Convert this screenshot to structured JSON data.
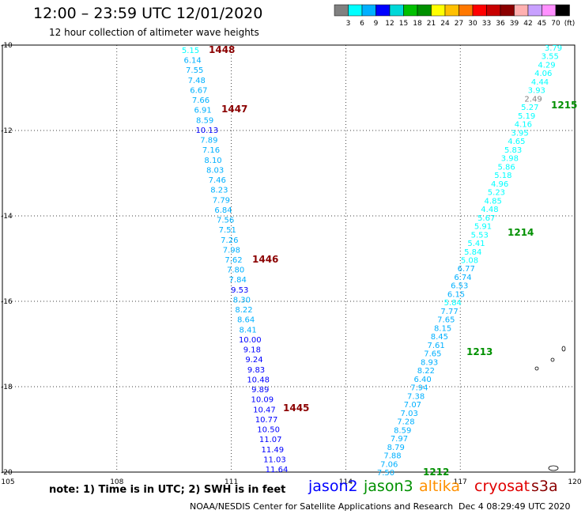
{
  "header": {
    "title": "12:00 – 23:59 UTC 12/01/2020",
    "subtitle": "12 hour collection of altimeter wave heights"
  },
  "legend": {
    "colors": [
      "#808080",
      "#00ffff",
      "#00b0ff",
      "#0000ff",
      "#00d8d8",
      "#00c000",
      "#009000",
      "#ffff00",
      "#ffc000",
      "#ff7800",
      "#ff0000",
      "#c80000",
      "#8b0000",
      "#ffb0b0",
      "#c8a0ff",
      "#ff90ff",
      "#000000"
    ],
    "labels": [
      "3",
      "6",
      "9",
      "12",
      "15",
      "18",
      "21",
      "24",
      "27",
      "30",
      "33",
      "36",
      "39",
      "42",
      "45",
      "70",
      "(ft)"
    ]
  },
  "axes": {
    "x_ticks": [
      "105",
      "108",
      "111",
      "114",
      "117",
      "120"
    ],
    "y_ticks": [
      "-10",
      "-12",
      "-14",
      "-16",
      "-18",
      "-20"
    ]
  },
  "tracks": {
    "left": {
      "heights": [
        "5.15",
        "6.14",
        "7.55",
        "7.48",
        "6.67",
        "7.66",
        "6.91",
        "8.59",
        "10.13",
        "7.89",
        "7.16",
        "8.10",
        "8.03",
        "7.46",
        "8.23",
        "7.79",
        "6.84",
        "7.56",
        "7.51",
        "7.26",
        "7.98",
        "7.62",
        "7.80",
        "7.84",
        "9.53",
        "8.30",
        "8.22",
        "8.64",
        "8.41",
        "10.00",
        "9.18",
        "9.24",
        "9.83",
        "10.48",
        "9.89",
        "10.09",
        "10.47",
        "10.77",
        "10.50",
        "11.07",
        "11.49",
        "11.03",
        "11.64"
      ],
      "times": [
        "1448",
        "1447",
        "1446",
        "1445"
      ]
    },
    "right": {
      "heights": [
        "3.79",
        "3.55",
        "4.29",
        "4.06",
        "4.44",
        "3.93",
        "2.49",
        "5.27",
        "5.19",
        "4.16",
        "3.95",
        "4.65",
        "5.83",
        "3.98",
        "5.86",
        "5.18",
        "4.96",
        "5.23",
        "4.85",
        "4.48",
        "5.67",
        "5.91",
        "5.53",
        "5.41",
        "5.84",
        "5.08",
        "6.77",
        "6.74",
        "6.53",
        "6.15",
        "5.84",
        "7.77",
        "7.65",
        "8.15",
        "8.45",
        "7.61",
        "7.65",
        "8.93",
        "8.22",
        "6.40",
        "7.94",
        "7.38",
        "7.07",
        "7.03",
        "7.28",
        "8.59",
        "7.97",
        "8.79",
        "7.88",
        "7.06",
        "7.50"
      ],
      "times": [
        "1215",
        "1214",
        "1213",
        "1212"
      ]
    }
  },
  "footer": {
    "note": "note: 1) Time is in UTC; 2) SWH is in feet",
    "satellites": [
      {
        "name": "jason2",
        "color": "#0000ff"
      },
      {
        "name": "jason3",
        "color": "#009000"
      },
      {
        "name": "altika",
        "color": "#ff9000"
      },
      {
        "name": "cryosat",
        "color": "#e00000"
      },
      {
        "name": "s3a",
        "color": "#8b0000"
      }
    ],
    "credit": "NOAA/NESDIS Center for Satellite Applications and Research",
    "timestamp": "Dec  4 08:29:49 UTC 2020"
  }
}
